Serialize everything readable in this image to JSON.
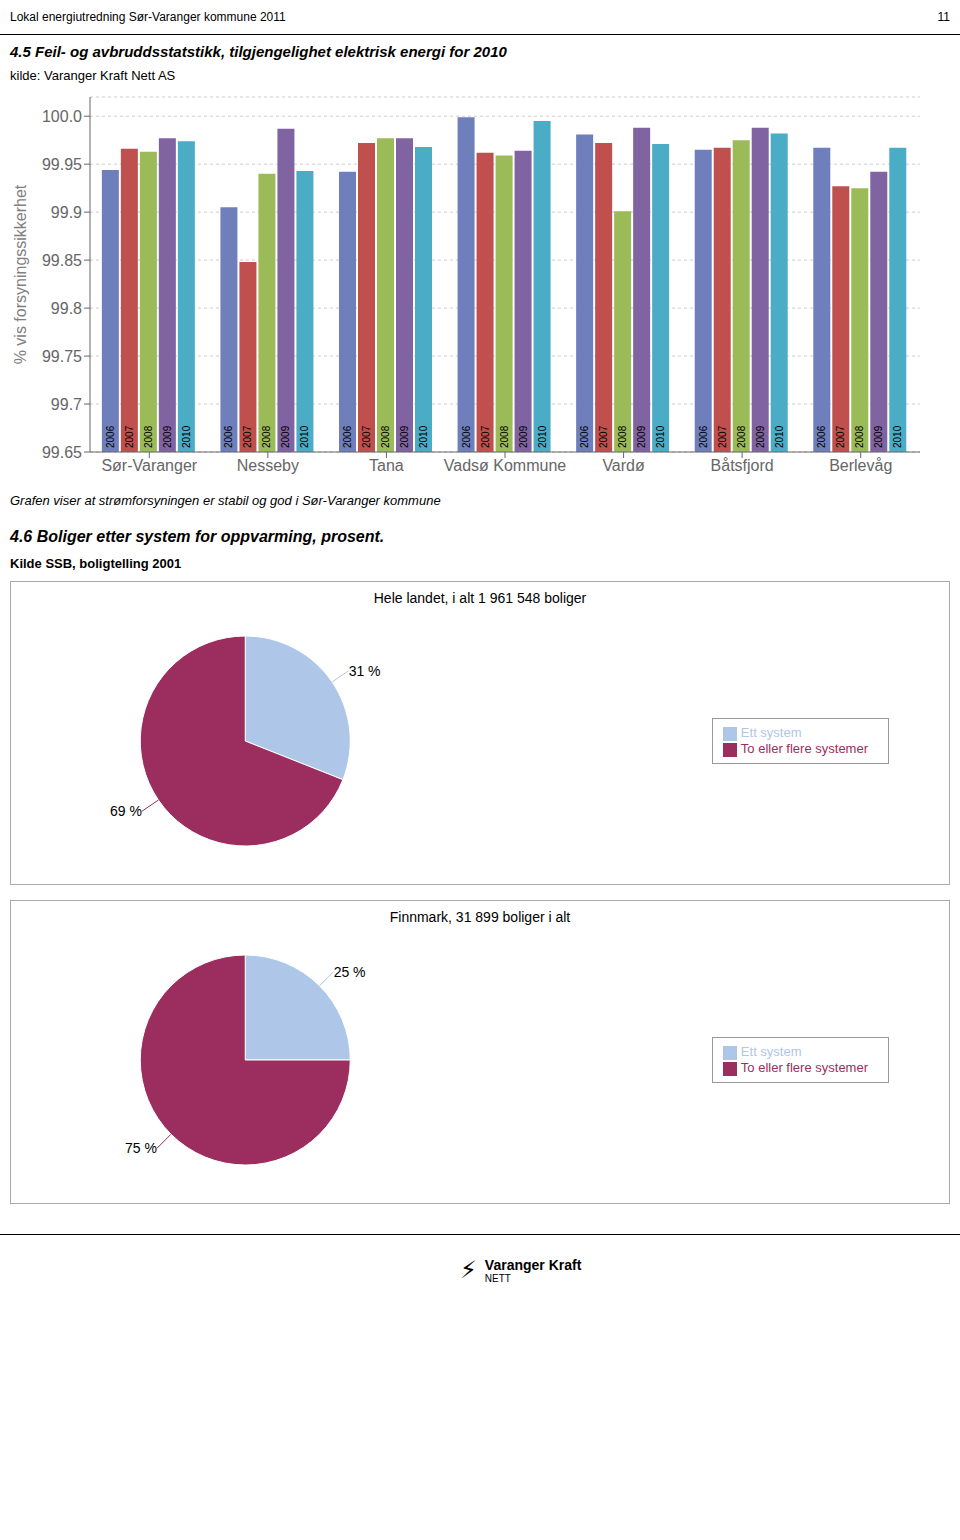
{
  "chart_data": [
    {
      "type": "bar",
      "title": "4.5 Feil- og avbruddsstatstikk, tilgjengelighet elektrisk energi for 2010",
      "subtitle": "kilde: Varanger Kraft Nett AS",
      "categories": [
        "Sør-Varanger",
        "Nesseby",
        "Tana",
        "Vadsø Kommune",
        "Vardø",
        "Båtsfjord",
        "Berlevåg"
      ],
      "series": [
        {
          "name": "2006",
          "color": "#6e7fbc",
          "values": [
            99.944,
            99.905,
            99.942,
            99.999,
            99.981,
            99.965,
            99.967
          ]
        },
        {
          "name": "2007",
          "color": "#c0504d",
          "values": [
            99.966,
            99.848,
            99.972,
            99.962,
            99.972,
            99.967,
            99.927
          ]
        },
        {
          "name": "2008",
          "color": "#9bbb59",
          "values": [
            99.963,
            99.94,
            99.977,
            99.959,
            99.901,
            99.975,
            99.925
          ]
        },
        {
          "name": "2009",
          "color": "#8064a2",
          "values": [
            99.977,
            99.987,
            99.977,
            99.964,
            99.988,
            99.988,
            99.942
          ]
        },
        {
          "name": "2010",
          "color": "#4bacc6",
          "values": [
            99.974,
            99.943,
            99.968,
            99.995,
            99.971,
            99.982,
            99.967
          ]
        }
      ],
      "ylabel": "% vis forsyningssikkerhet",
      "ylim": [
        99.65,
        100.02
      ],
      "yticks": [
        99.65,
        99.7,
        99.75,
        99.8,
        99.85,
        99.9,
        99.95,
        {
          "value": 100.0,
          "label": "100.0"
        }
      ],
      "grid": true,
      "annotations": [
        "Lokal energiutredning Sør-Varanger kommune 2011",
        "11",
        "Grafen viser at strømforsyningen er stabil og god i Sør-Varanger kommune"
      ]
    },
    {
      "type": "pie",
      "title": "Hele landet, i alt 1 961 548 boliger",
      "categories": [
        "Ett system",
        "To eller flere systemer"
      ],
      "values": [
        31,
        69
      ],
      "value_labels": [
        "31 %",
        "69 %"
      ],
      "colors": [
        "#aec6e8",
        "#9b2e5e"
      ],
      "data_labels": true,
      "legend": "right",
      "annotations": [
        "4.6 Boliger etter system for oppvarming, prosent.",
        "Kilde SSB, boligtelling 2001"
      ]
    },
    {
      "type": "pie",
      "title": "Finnmark, 31 899 boliger i alt",
      "categories": [
        "Ett system",
        "To eller flere systemer"
      ],
      "values": [
        25,
        75
      ],
      "value_labels": [
        "25 %",
        "75 %"
      ],
      "colors": [
        "#aec6e8",
        "#9b2e5e"
      ],
      "data_labels": true,
      "legend": "right",
      "annotations": [
        "Varanger Kraft",
        "NETT",
        "⚡"
      ]
    }
  ]
}
